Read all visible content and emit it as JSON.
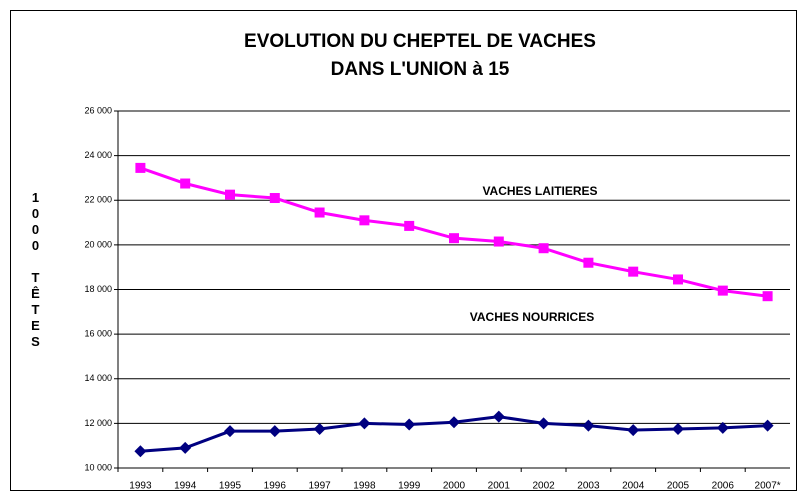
{
  "chart_data": {
    "type": "line",
    "title": [
      "EVOLUTION DU CHEPTEL DE VACHES",
      "DANS L'UNION à 15"
    ],
    "ylabel": "1000 TÊTES",
    "categories": [
      "1993",
      "1994",
      "1995",
      "1996",
      "1997",
      "1998",
      "1999",
      "2000",
      "2001",
      "2002",
      "2003",
      "2004",
      "2005",
      "2006",
      "2007*"
    ],
    "series": [
      {
        "name": "VACHES LAITIERES",
        "color": "#ff00ff",
        "marker": "square",
        "values": [
          23450,
          22750,
          22250,
          22100,
          21450,
          21100,
          20850,
          20300,
          20150,
          19850,
          19200,
          18800,
          18450,
          17950,
          17700
        ]
      },
      {
        "name": "VACHES NOURRICES",
        "color": "#000080",
        "marker": "diamond",
        "values": [
          10750,
          10900,
          11650,
          11650,
          11750,
          12000,
          11950,
          12050,
          12300,
          12000,
          11900,
          11700,
          11750,
          11800,
          11900
        ]
      }
    ],
    "ylim": [
      10000,
      26000
    ],
    "yticks": [
      {
        "value": 10000,
        "label": "10 000"
      },
      {
        "value": 12000,
        "label": "12 000"
      },
      {
        "value": 14000,
        "label": "14 000"
      },
      {
        "value": 16000,
        "label": "16 000"
      },
      {
        "value": 18000,
        "label": "18 000"
      },
      {
        "value": 20000,
        "label": "20 000"
      },
      {
        "value": 22000,
        "label": "22 000"
      },
      {
        "value": 24000,
        "label": "24 000"
      },
      {
        "value": 26000,
        "label": "26 000"
      }
    ],
    "grid": true
  }
}
